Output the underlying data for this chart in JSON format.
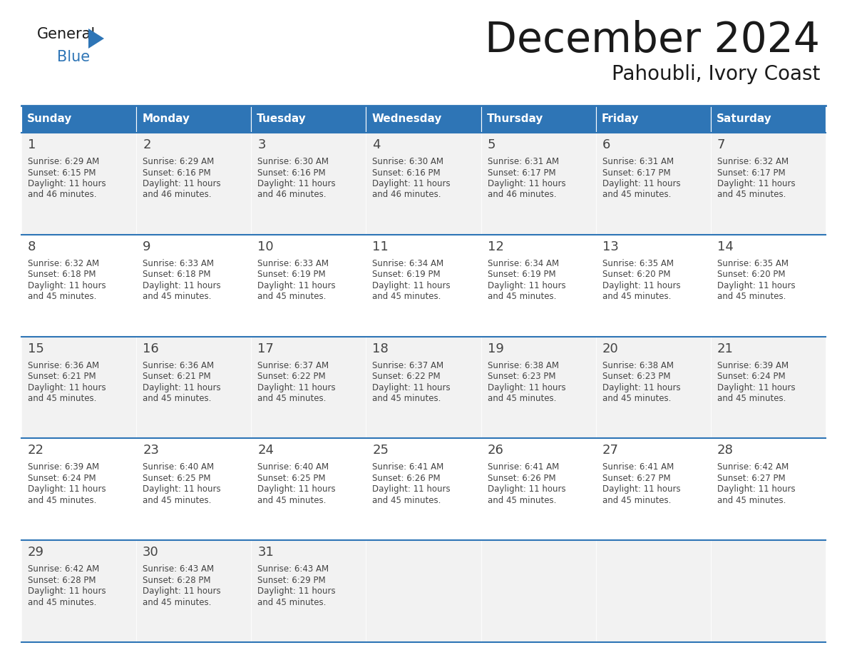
{
  "title": "December 2024",
  "subtitle": "Pahoubli, Ivory Coast",
  "days_of_week": [
    "Sunday",
    "Monday",
    "Tuesday",
    "Wednesday",
    "Thursday",
    "Friday",
    "Saturday"
  ],
  "header_bg": "#2E75B6",
  "header_text": "#FFFFFF",
  "cell_bg_odd": "#F2F2F2",
  "cell_bg_even": "#FFFFFF",
  "day_number_color": "#444444",
  "text_color": "#444444",
  "line_color": "#2E75B6",
  "logo_general_color": "#1a1a1a",
  "logo_blue_color": "#2E75B6",
  "logo_triangle_color": "#2E75B6",
  "title_color": "#1a1a1a",
  "weeks": [
    [
      {
        "day": 1,
        "sunrise": "6:29 AM",
        "sunset": "6:15 PM",
        "daylight_hrs": 11,
        "daylight_min": 46
      },
      {
        "day": 2,
        "sunrise": "6:29 AM",
        "sunset": "6:16 PM",
        "daylight_hrs": 11,
        "daylight_min": 46
      },
      {
        "day": 3,
        "sunrise": "6:30 AM",
        "sunset": "6:16 PM",
        "daylight_hrs": 11,
        "daylight_min": 46
      },
      {
        "day": 4,
        "sunrise": "6:30 AM",
        "sunset": "6:16 PM",
        "daylight_hrs": 11,
        "daylight_min": 46
      },
      {
        "day": 5,
        "sunrise": "6:31 AM",
        "sunset": "6:17 PM",
        "daylight_hrs": 11,
        "daylight_min": 46
      },
      {
        "day": 6,
        "sunrise": "6:31 AM",
        "sunset": "6:17 PM",
        "daylight_hrs": 11,
        "daylight_min": 45
      },
      {
        "day": 7,
        "sunrise": "6:32 AM",
        "sunset": "6:17 PM",
        "daylight_hrs": 11,
        "daylight_min": 45
      }
    ],
    [
      {
        "day": 8,
        "sunrise": "6:32 AM",
        "sunset": "6:18 PM",
        "daylight_hrs": 11,
        "daylight_min": 45
      },
      {
        "day": 9,
        "sunrise": "6:33 AM",
        "sunset": "6:18 PM",
        "daylight_hrs": 11,
        "daylight_min": 45
      },
      {
        "day": 10,
        "sunrise": "6:33 AM",
        "sunset": "6:19 PM",
        "daylight_hrs": 11,
        "daylight_min": 45
      },
      {
        "day": 11,
        "sunrise": "6:34 AM",
        "sunset": "6:19 PM",
        "daylight_hrs": 11,
        "daylight_min": 45
      },
      {
        "day": 12,
        "sunrise": "6:34 AM",
        "sunset": "6:19 PM",
        "daylight_hrs": 11,
        "daylight_min": 45
      },
      {
        "day": 13,
        "sunrise": "6:35 AM",
        "sunset": "6:20 PM",
        "daylight_hrs": 11,
        "daylight_min": 45
      },
      {
        "day": 14,
        "sunrise": "6:35 AM",
        "sunset": "6:20 PM",
        "daylight_hrs": 11,
        "daylight_min": 45
      }
    ],
    [
      {
        "day": 15,
        "sunrise": "6:36 AM",
        "sunset": "6:21 PM",
        "daylight_hrs": 11,
        "daylight_min": 45
      },
      {
        "day": 16,
        "sunrise": "6:36 AM",
        "sunset": "6:21 PM",
        "daylight_hrs": 11,
        "daylight_min": 45
      },
      {
        "day": 17,
        "sunrise": "6:37 AM",
        "sunset": "6:22 PM",
        "daylight_hrs": 11,
        "daylight_min": 45
      },
      {
        "day": 18,
        "sunrise": "6:37 AM",
        "sunset": "6:22 PM",
        "daylight_hrs": 11,
        "daylight_min": 45
      },
      {
        "day": 19,
        "sunrise": "6:38 AM",
        "sunset": "6:23 PM",
        "daylight_hrs": 11,
        "daylight_min": 45
      },
      {
        "day": 20,
        "sunrise": "6:38 AM",
        "sunset": "6:23 PM",
        "daylight_hrs": 11,
        "daylight_min": 45
      },
      {
        "day": 21,
        "sunrise": "6:39 AM",
        "sunset": "6:24 PM",
        "daylight_hrs": 11,
        "daylight_min": 45
      }
    ],
    [
      {
        "day": 22,
        "sunrise": "6:39 AM",
        "sunset": "6:24 PM",
        "daylight_hrs": 11,
        "daylight_min": 45
      },
      {
        "day": 23,
        "sunrise": "6:40 AM",
        "sunset": "6:25 PM",
        "daylight_hrs": 11,
        "daylight_min": 45
      },
      {
        "day": 24,
        "sunrise": "6:40 AM",
        "sunset": "6:25 PM",
        "daylight_hrs": 11,
        "daylight_min": 45
      },
      {
        "day": 25,
        "sunrise": "6:41 AM",
        "sunset": "6:26 PM",
        "daylight_hrs": 11,
        "daylight_min": 45
      },
      {
        "day": 26,
        "sunrise": "6:41 AM",
        "sunset": "6:26 PM",
        "daylight_hrs": 11,
        "daylight_min": 45
      },
      {
        "day": 27,
        "sunrise": "6:41 AM",
        "sunset": "6:27 PM",
        "daylight_hrs": 11,
        "daylight_min": 45
      },
      {
        "day": 28,
        "sunrise": "6:42 AM",
        "sunset": "6:27 PM",
        "daylight_hrs": 11,
        "daylight_min": 45
      }
    ],
    [
      {
        "day": 29,
        "sunrise": "6:42 AM",
        "sunset": "6:28 PM",
        "daylight_hrs": 11,
        "daylight_min": 45
      },
      {
        "day": 30,
        "sunrise": "6:43 AM",
        "sunset": "6:28 PM",
        "daylight_hrs": 11,
        "daylight_min": 45
      },
      {
        "day": 31,
        "sunrise": "6:43 AM",
        "sunset": "6:29 PM",
        "daylight_hrs": 11,
        "daylight_min": 45
      },
      null,
      null,
      null,
      null
    ]
  ]
}
